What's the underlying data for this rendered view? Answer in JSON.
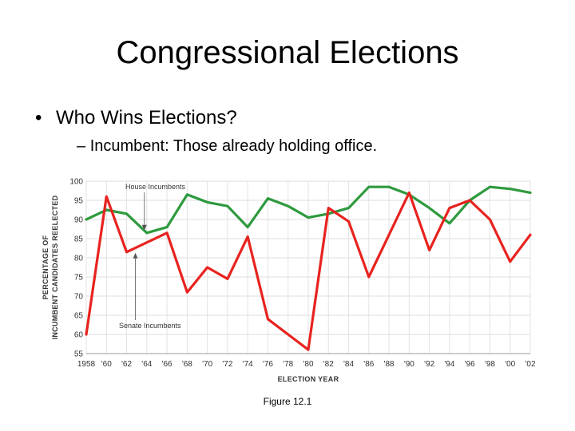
{
  "slide": {
    "title": "Congressional Elections",
    "bullet": "Who Wins Elections?",
    "sub_bullet": "Incumbent: Those already holding office.",
    "caption": "Figure 12.1"
  },
  "chart_data": {
    "type": "line",
    "xlabel": "ELECTION YEAR",
    "ylabel": [
      "PERCENTAGE OF",
      "INCUMBENT CANDIDATES REELECTED"
    ],
    "ylim": [
      55,
      100
    ],
    "yticks": [
      55,
      60,
      65,
      70,
      75,
      80,
      85,
      90,
      95,
      100
    ],
    "categories": [
      "1958",
      "'60",
      "'62",
      "'64",
      "'66",
      "'68",
      "'70",
      "'72",
      "'74",
      "'76",
      "'78",
      "'80",
      "'82",
      "'84",
      "'86",
      "'88",
      "'90",
      "'92",
      "'94",
      "'96",
      "'98",
      "'00",
      "'02"
    ],
    "grid": true,
    "series": [
      {
        "name": "House Incumbents",
        "color": "#2e9a3e",
        "values": [
          90,
          92.5,
          91.5,
          86.5,
          88,
          96.5,
          94.5,
          93.5,
          88,
          95.5,
          93.5,
          90.5,
          91.5,
          93,
          98.5,
          98.5,
          96.5,
          93,
          89,
          95,
          98.5,
          98,
          97
        ]
      },
      {
        "name": "Senate Incumbents",
        "color": "#e8231f",
        "values": [
          60,
          96,
          81.5,
          84,
          86.5,
          71,
          77.5,
          74.5,
          85.5,
          64,
          60,
          56,
          93,
          89.5,
          75,
          86,
          97,
          82,
          93,
          95,
          90,
          79,
          86
        ]
      }
    ]
  }
}
